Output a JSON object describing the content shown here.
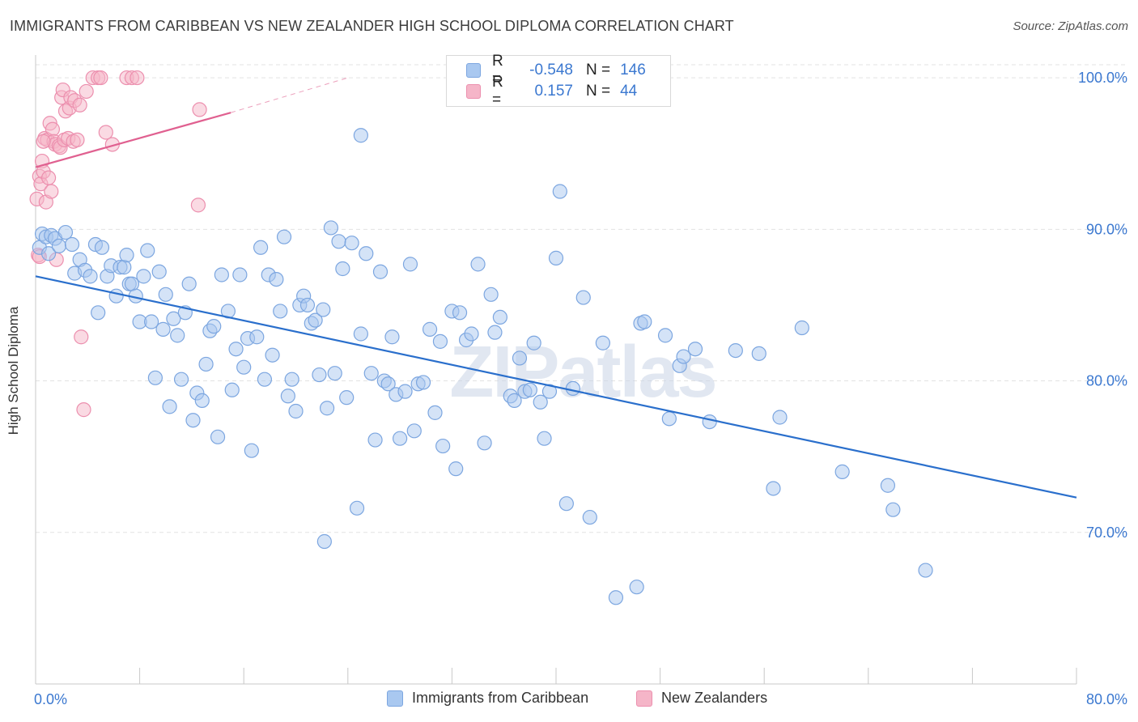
{
  "header": {
    "title": "IMMIGRANTS FROM CARIBBEAN VS NEW ZEALANDER HIGH SCHOOL DIPLOMA CORRELATION CHART",
    "source": "Source: ZipAtlas.com"
  },
  "watermark": "ZIPatlas",
  "stats_legend": {
    "rows": [
      {
        "r_label": "R =",
        "r_value": "-0.548",
        "n_label": "N =",
        "n_value": "146",
        "color": "#a9c8f0"
      },
      {
        "r_label": "R =",
        "r_value": "0.157",
        "n_label": "N =",
        "n_value": "44",
        "color": "#f5b5c8"
      }
    ]
  },
  "colors": {
    "blue_fill": "#a9c8f0",
    "blue_stroke": "#7ca6e0",
    "blue_line": "#2a6fcc",
    "pink_fill": "#f5b5c8",
    "pink_stroke": "#ec8fae",
    "pink_line": "#e06090",
    "tick_label": "#3b78d0"
  },
  "chart_data": {
    "type": "scatter",
    "title": "IMMIGRANTS FROM CARIBBEAN VS NEW ZEALANDER HIGH SCHOOL DIPLOMA CORRELATION CHART",
    "xlabel": "",
    "ylabel": "High School Diploma",
    "xlim": [
      0,
      80
    ],
    "ylim": [
      60.0,
      101.5
    ],
    "x_tick_labels": [
      "0.0%",
      "80.0%"
    ],
    "y_ticks": [
      70,
      80,
      90,
      100
    ],
    "y_tick_labels": [
      "70.0%",
      "80.0%",
      "90.0%",
      "100.0%"
    ],
    "grid": true,
    "legend_position": "bottom-center",
    "series": [
      {
        "name": "Immigrants from Caribbean",
        "color": "#a9c8f0",
        "trend": {
          "x": [
            0,
            80
          ],
          "y": [
            86.9,
            72.3
          ]
        },
        "points": [
          [
            0.3,
            88.8
          ],
          [
            0.5,
            89.7
          ],
          [
            0.8,
            89.5
          ],
          [
            1.0,
            88.4
          ],
          [
            1.2,
            89.6
          ],
          [
            1.5,
            89.4
          ],
          [
            1.8,
            88.9
          ],
          [
            2.3,
            89.8
          ],
          [
            2.8,
            89.0
          ],
          [
            3.0,
            87.1
          ],
          [
            3.4,
            88.0
          ],
          [
            3.8,
            87.3
          ],
          [
            4.2,
            86.9
          ],
          [
            4.6,
            89.0
          ],
          [
            4.8,
            84.5
          ],
          [
            5.1,
            88.8
          ],
          [
            5.5,
            86.9
          ],
          [
            5.8,
            87.6
          ],
          [
            6.2,
            85.6
          ],
          [
            6.5,
            87.5
          ],
          [
            6.8,
            87.5
          ],
          [
            7.0,
            88.3
          ],
          [
            7.2,
            86.4
          ],
          [
            7.4,
            86.4
          ],
          [
            7.7,
            85.6
          ],
          [
            8.0,
            83.9
          ],
          [
            8.3,
            86.9
          ],
          [
            8.6,
            88.6
          ],
          [
            8.9,
            83.9
          ],
          [
            9.2,
            80.2
          ],
          [
            9.5,
            87.2
          ],
          [
            9.8,
            83.4
          ],
          [
            10.0,
            85.7
          ],
          [
            10.3,
            78.3
          ],
          [
            10.6,
            84.1
          ],
          [
            10.9,
            83.0
          ],
          [
            11.2,
            80.1
          ],
          [
            11.5,
            84.5
          ],
          [
            11.8,
            86.4
          ],
          [
            12.1,
            77.4
          ],
          [
            12.4,
            79.2
          ],
          [
            12.8,
            78.7
          ],
          [
            13.1,
            81.1
          ],
          [
            13.4,
            83.3
          ],
          [
            13.7,
            83.6
          ],
          [
            14.0,
            76.3
          ],
          [
            14.3,
            87.0
          ],
          [
            14.8,
            84.6
          ],
          [
            15.1,
            79.4
          ],
          [
            15.4,
            82.1
          ],
          [
            15.7,
            87.0
          ],
          [
            16.0,
            80.9
          ],
          [
            16.3,
            82.8
          ],
          [
            16.6,
            75.4
          ],
          [
            17.0,
            82.9
          ],
          [
            17.3,
            88.8
          ],
          [
            17.6,
            80.1
          ],
          [
            17.9,
            87.0
          ],
          [
            18.2,
            81.7
          ],
          [
            18.5,
            86.7
          ],
          [
            18.8,
            84.6
          ],
          [
            19.1,
            89.5
          ],
          [
            19.4,
            79.0
          ],
          [
            19.7,
            80.1
          ],
          [
            20.0,
            78.0
          ],
          [
            20.3,
            85.0
          ],
          [
            20.6,
            85.6
          ],
          [
            20.9,
            85.0
          ],
          [
            21.2,
            83.8
          ],
          [
            21.5,
            84.0
          ],
          [
            21.8,
            80.4
          ],
          [
            22.1,
            84.7
          ],
          [
            22.4,
            78.2
          ],
          [
            22.7,
            90.1
          ],
          [
            23.0,
            80.5
          ],
          [
            23.3,
            89.2
          ],
          [
            23.6,
            87.4
          ],
          [
            23.9,
            78.9
          ],
          [
            24.3,
            89.1
          ],
          [
            24.7,
            71.6
          ],
          [
            25.0,
            83.1
          ],
          [
            25.4,
            88.4
          ],
          [
            25.8,
            80.5
          ],
          [
            26.1,
            76.1
          ],
          [
            26.5,
            87.2
          ],
          [
            26.8,
            80.0
          ],
          [
            27.1,
            79.8
          ],
          [
            27.4,
            82.9
          ],
          [
            27.7,
            79.1
          ],
          [
            28.0,
            76.2
          ],
          [
            28.4,
            79.3
          ],
          [
            28.8,
            87.7
          ],
          [
            29.1,
            76.7
          ],
          [
            29.4,
            79.8
          ],
          [
            29.8,
            79.9
          ],
          [
            30.3,
            83.4
          ],
          [
            30.7,
            77.9
          ],
          [
            31.1,
            82.6
          ],
          [
            31.3,
            75.7
          ],
          [
            32.0,
            84.6
          ],
          [
            32.3,
            74.2
          ],
          [
            32.6,
            84.5
          ],
          [
            33.1,
            82.7
          ],
          [
            33.5,
            83.1
          ],
          [
            34.0,
            87.7
          ],
          [
            34.5,
            75.9
          ],
          [
            35.0,
            85.7
          ],
          [
            35.3,
            83.2
          ],
          [
            35.7,
            84.2
          ],
          [
            36.5,
            79.0
          ],
          [
            36.8,
            78.7
          ],
          [
            37.2,
            81.5
          ],
          [
            37.6,
            79.3
          ],
          [
            38.0,
            79.4
          ],
          [
            38.3,
            82.5
          ],
          [
            38.8,
            78.6
          ],
          [
            39.1,
            76.2
          ],
          [
            39.5,
            79.3
          ],
          [
            40.0,
            88.1
          ],
          [
            40.3,
            92.5
          ],
          [
            40.8,
            71.9
          ],
          [
            41.3,
            79.5
          ],
          [
            42.1,
            85.5
          ],
          [
            42.6,
            71.0
          ],
          [
            43.6,
            82.5
          ],
          [
            44.6,
            65.7
          ],
          [
            46.2,
            66.4
          ],
          [
            46.5,
            83.8
          ],
          [
            46.8,
            83.9
          ],
          [
            48.4,
            83.0
          ],
          [
            48.7,
            77.5
          ],
          [
            49.5,
            81.0
          ],
          [
            49.8,
            81.6
          ],
          [
            50.7,
            82.1
          ],
          [
            51.8,
            77.3
          ],
          [
            53.8,
            82.0
          ],
          [
            55.6,
            81.8
          ],
          [
            56.7,
            72.9
          ],
          [
            57.2,
            77.6
          ],
          [
            58.9,
            83.5
          ],
          [
            62.0,
            74.0
          ],
          [
            65.5,
            73.1
          ],
          [
            65.9,
            71.5
          ],
          [
            68.4,
            67.5
          ],
          [
            25.0,
            96.2
          ],
          [
            22.2,
            69.4
          ]
        ]
      },
      {
        "name": "New Zealanders",
        "color": "#f5b5c8",
        "trend": {
          "x": [
            0,
            15
          ],
          "y": [
            94.1,
            97.7
          ]
        },
        "trend_extension": {
          "x": [
            15,
            24
          ],
          "y": [
            97.7,
            100.0
          ]
        },
        "points": [
          [
            0.1,
            92.0
          ],
          [
            0.2,
            88.3
          ],
          [
            0.3,
            93.5
          ],
          [
            0.4,
            93.0
          ],
          [
            0.5,
            94.5
          ],
          [
            0.6,
            93.8
          ],
          [
            0.7,
            96.0
          ],
          [
            0.8,
            91.8
          ],
          [
            0.9,
            95.9
          ],
          [
            1.0,
            93.4
          ],
          [
            1.1,
            97.0
          ],
          [
            1.2,
            92.5
          ],
          [
            1.3,
            96.6
          ],
          [
            1.4,
            95.8
          ],
          [
            1.5,
            95.6
          ],
          [
            1.6,
            88.0
          ],
          [
            1.8,
            95.5
          ],
          [
            1.9,
            95.4
          ],
          [
            2.0,
            98.7
          ],
          [
            2.1,
            99.2
          ],
          [
            2.2,
            95.9
          ],
          [
            2.3,
            97.8
          ],
          [
            2.5,
            96.0
          ],
          [
            2.6,
            98.0
          ],
          [
            2.7,
            98.7
          ],
          [
            2.9,
            95.8
          ],
          [
            3.0,
            98.5
          ],
          [
            3.2,
            95.9
          ],
          [
            3.4,
            98.2
          ],
          [
            3.5,
            82.9
          ],
          [
            3.7,
            78.1
          ],
          [
            3.9,
            99.1
          ],
          [
            4.4,
            100.0
          ],
          [
            4.8,
            100.0
          ],
          [
            5.0,
            100.0
          ],
          [
            5.4,
            96.4
          ],
          [
            5.9,
            95.6
          ],
          [
            7.0,
            100.0
          ],
          [
            7.4,
            100.0
          ],
          [
            7.8,
            100.0
          ],
          [
            12.5,
            91.6
          ],
          [
            12.6,
            97.9
          ],
          [
            0.3,
            88.2
          ],
          [
            0.6,
            95.8
          ]
        ]
      }
    ]
  }
}
